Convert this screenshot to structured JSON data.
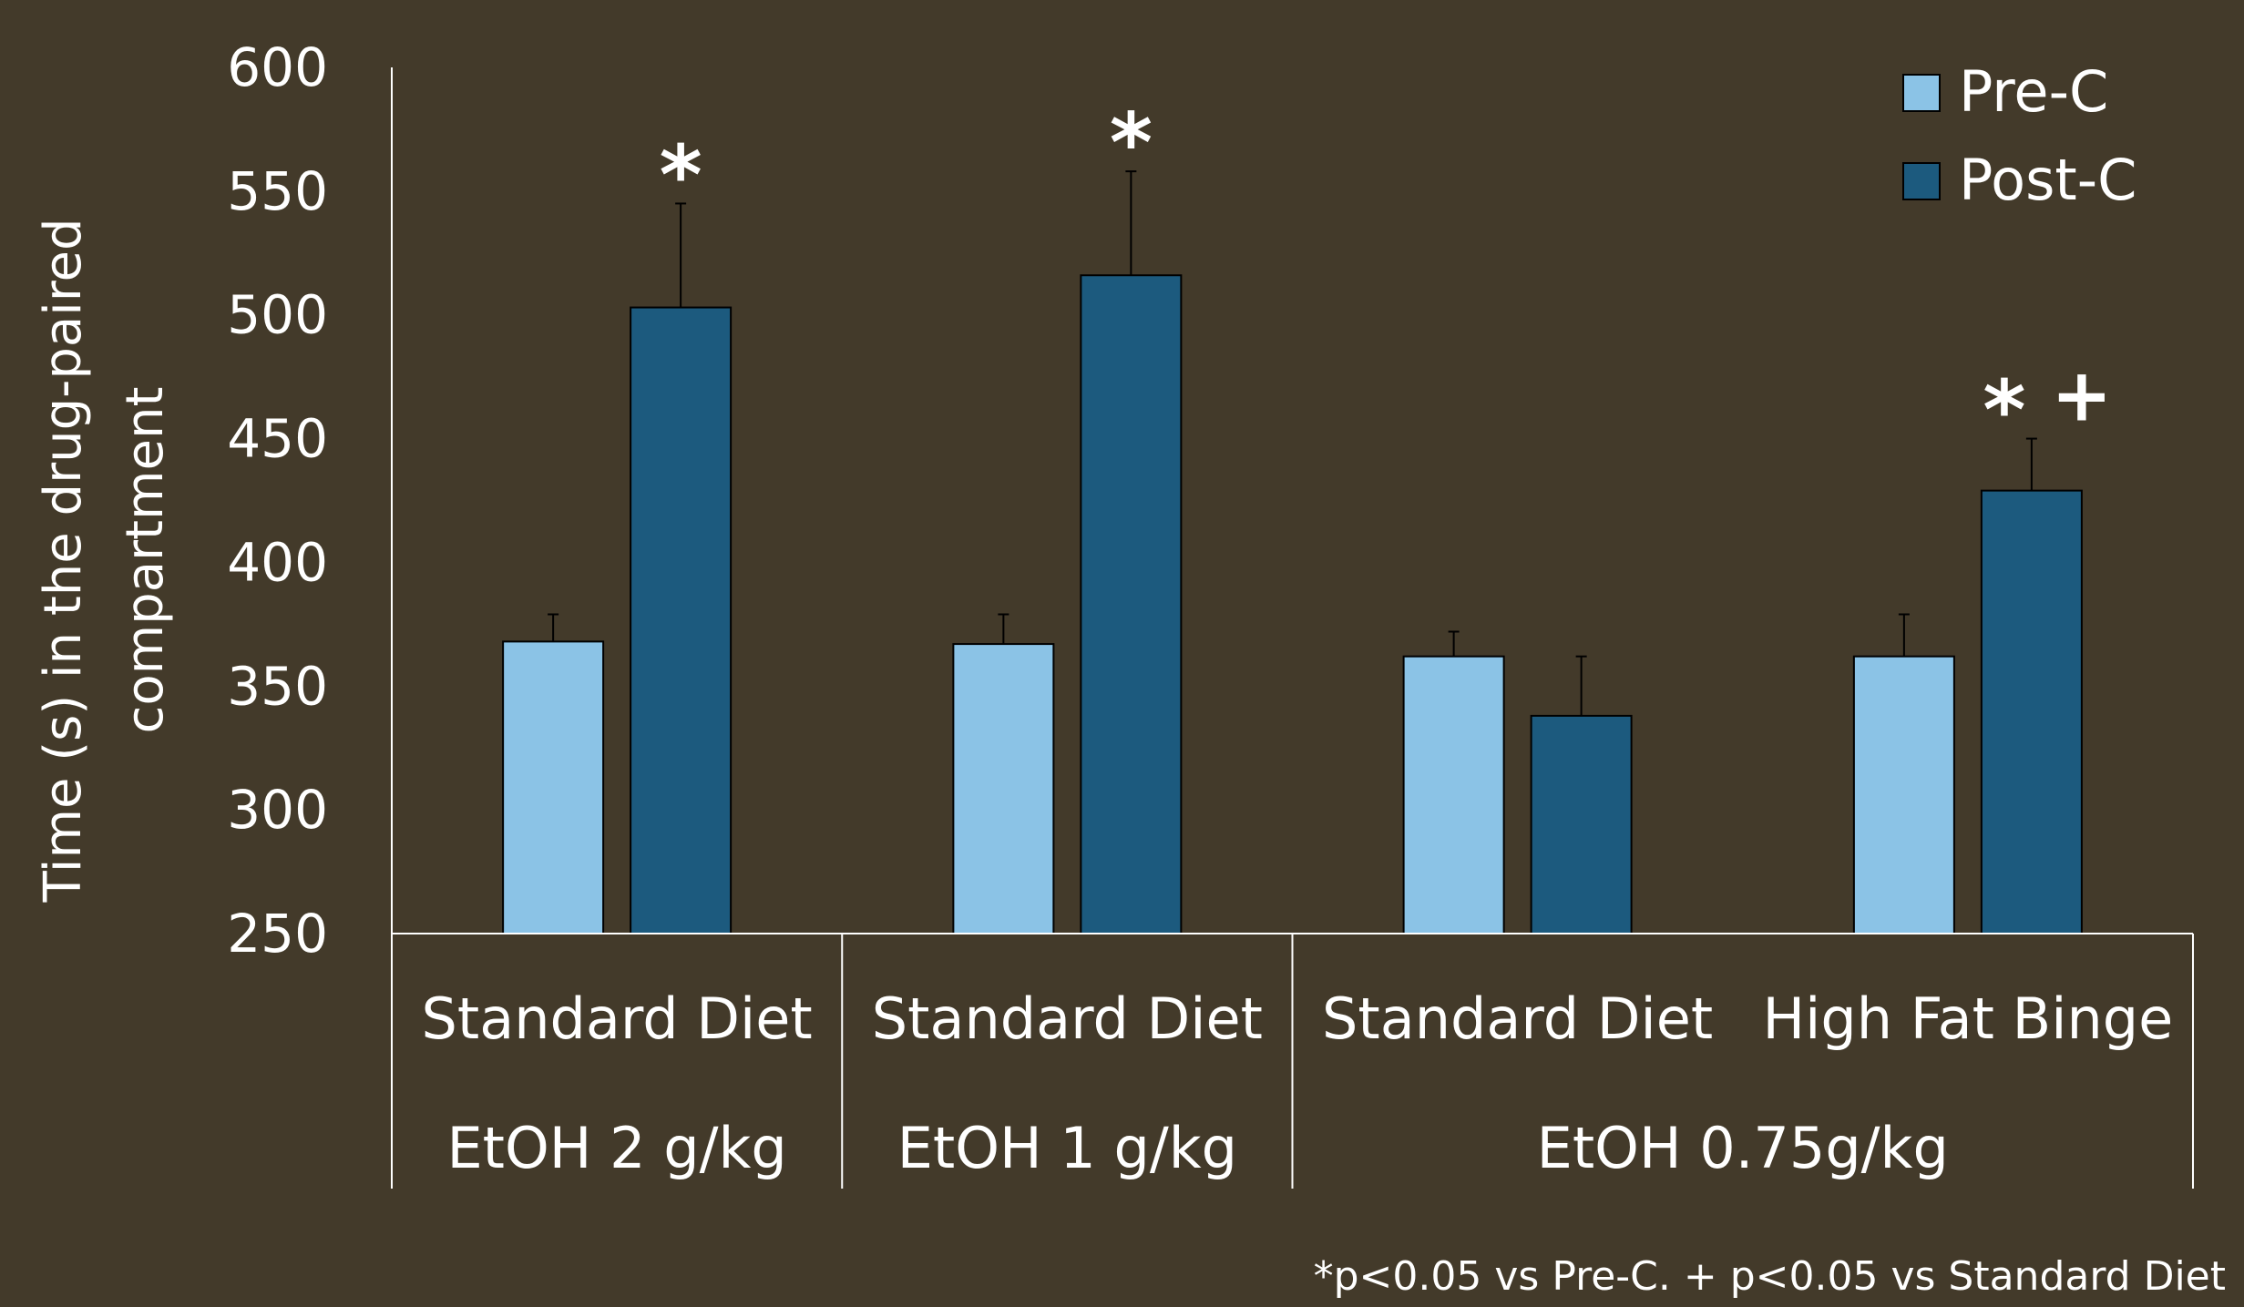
{
  "chart_data": {
    "type": "bar",
    "title": "",
    "ylabel_lines": [
      "Time (s) in the drug-paired",
      "compartment"
    ],
    "ylim": [
      250,
      600
    ],
    "yticks": [
      250,
      300,
      350,
      400,
      450,
      500,
      550,
      600
    ],
    "legend_position": "top-right",
    "categories": [
      "Standard Diet",
      "Standard Diet",
      "Standard Diet",
      "High Fat Binge"
    ],
    "groups": [
      {
        "label": "EtOH 2 g/kg",
        "span": [
          0,
          0
        ]
      },
      {
        "label": "EtOH 1 g/kg",
        "span": [
          1,
          1
        ]
      },
      {
        "label": "EtOH 0.75g/kg",
        "span": [
          2,
          3
        ]
      }
    ],
    "series": [
      {
        "name": "Pre-C",
        "color": "#8bc3e6",
        "values": [
          368,
          367,
          362,
          362
        ],
        "errors": [
          11,
          12,
          10,
          17
        ]
      },
      {
        "name": "Post-C",
        "color": "#1c5a7e",
        "values": [
          503,
          516,
          338,
          429
        ],
        "errors": [
          42,
          42,
          24,
          21
        ]
      }
    ],
    "annotations": [
      {
        "category": 0,
        "series": 1,
        "text": "*"
      },
      {
        "category": 1,
        "series": 1,
        "text": "*"
      },
      {
        "category": 3,
        "series": 1,
        "text": "*"
      },
      {
        "category": 3,
        "series": 1,
        "text": "+"
      }
    ],
    "footnote": "*p<0.05 vs Pre-C. + p<0.05 vs Standard Diet"
  }
}
